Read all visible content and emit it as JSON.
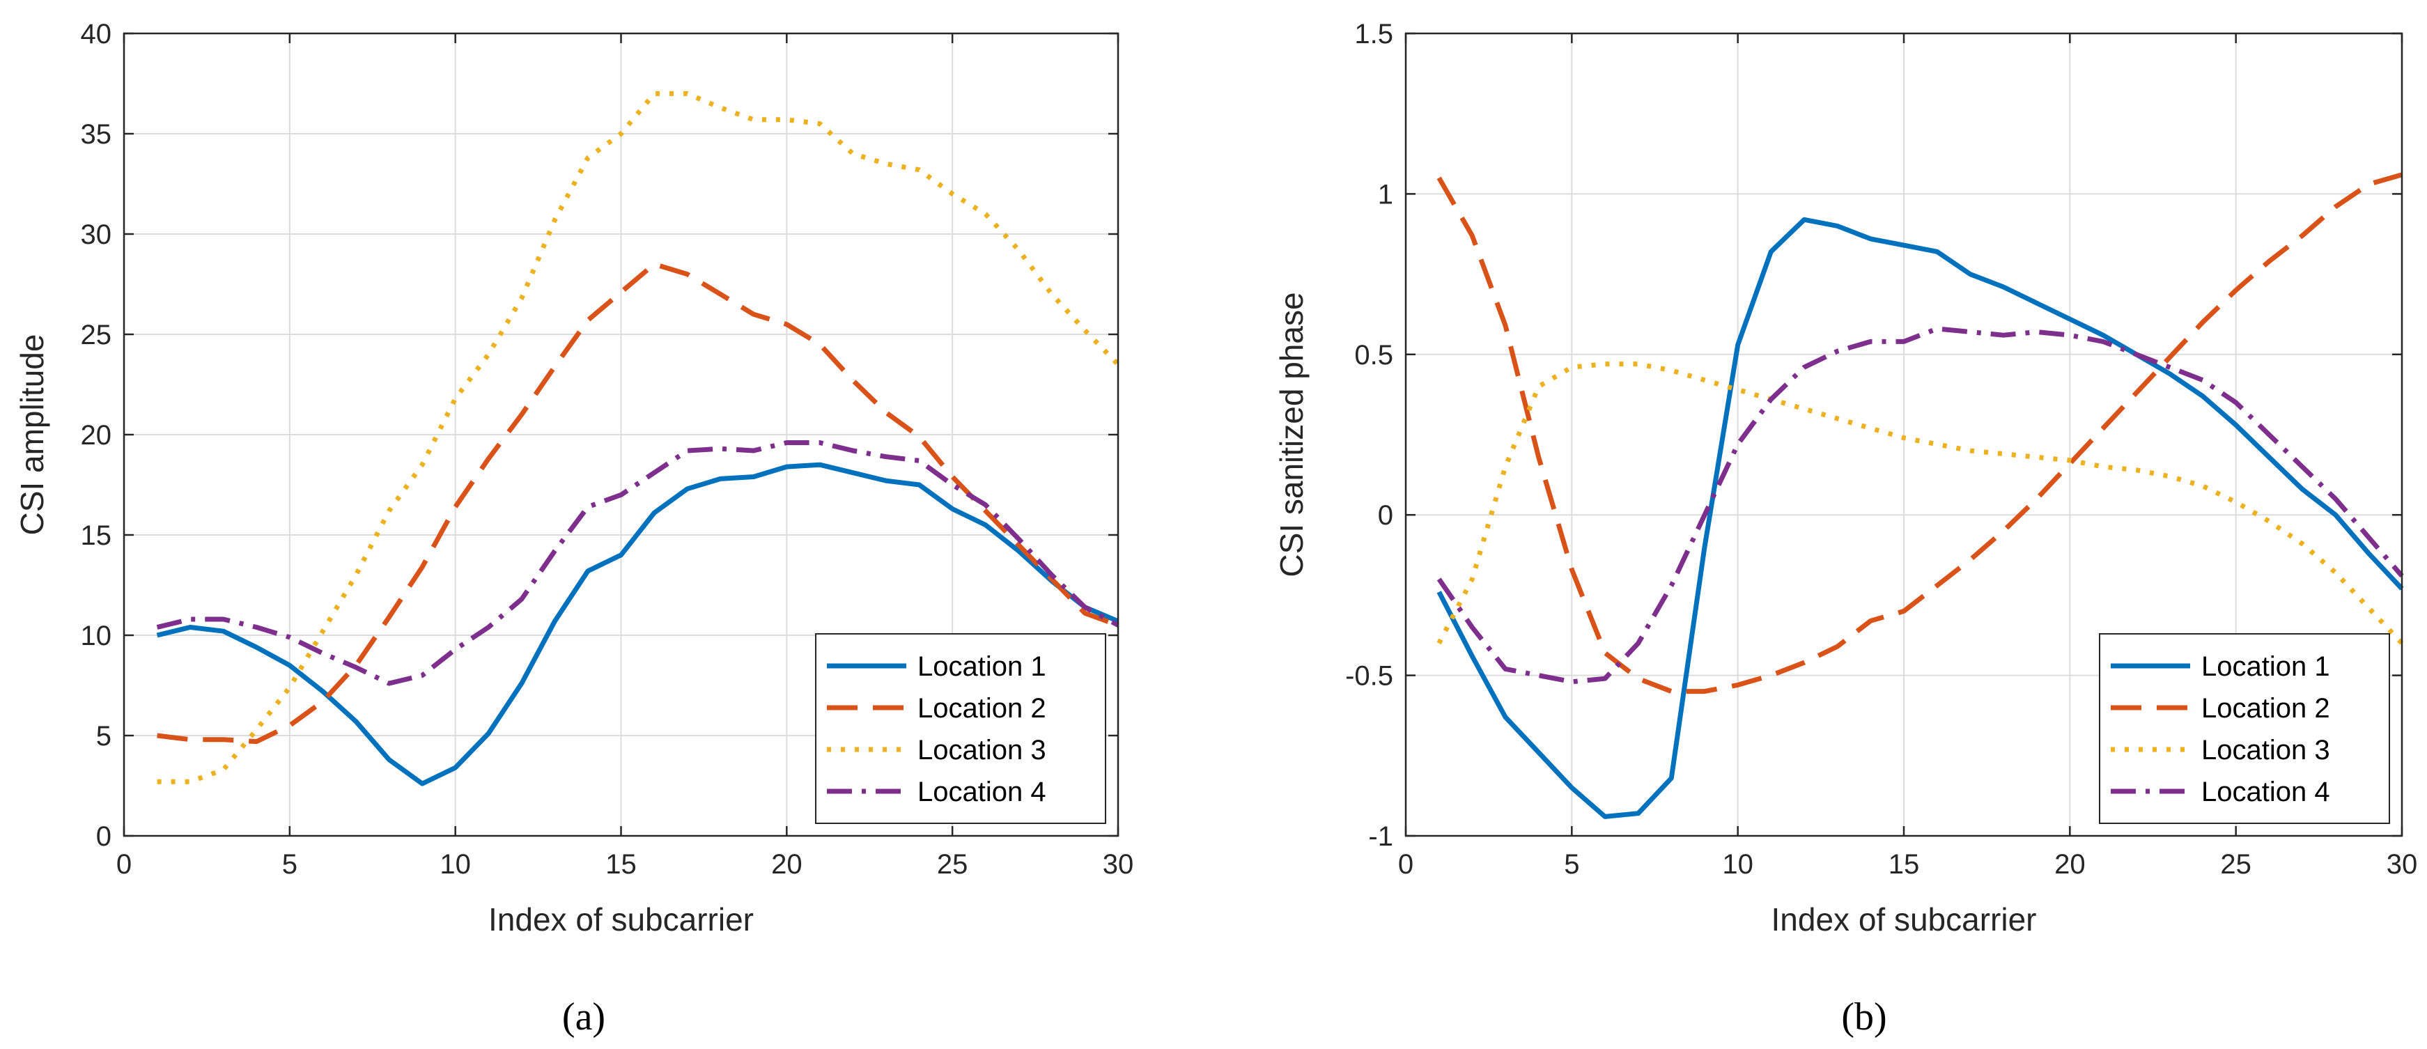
{
  "chart_data": [
    {
      "type": "line",
      "panel": "a",
      "caption": "(a)",
      "xlabel": "Index of subcarrier",
      "ylabel": "CSI amplitude",
      "xlim": [
        0,
        30
      ],
      "ylim": [
        0,
        40
      ],
      "xticks": [
        0,
        5,
        10,
        15,
        20,
        25,
        30
      ],
      "yticks": [
        0,
        5,
        10,
        15,
        20,
        25,
        30,
        35,
        40
      ],
      "grid": true,
      "legend_position": "bottom-right",
      "x": [
        1,
        2,
        3,
        4,
        5,
        6,
        7,
        8,
        9,
        10,
        11,
        12,
        13,
        14,
        15,
        16,
        17,
        18,
        19,
        20,
        21,
        22,
        23,
        24,
        25,
        26,
        27,
        28,
        29,
        30
      ],
      "series": [
        {
          "name": "Location 1",
          "style": "solid",
          "color": "#0072BD",
          "values": [
            10.0,
            10.4,
            10.2,
            9.4,
            8.5,
            7.2,
            5.7,
            3.8,
            2.6,
            3.4,
            5.1,
            7.6,
            10.7,
            13.2,
            14.0,
            16.1,
            17.3,
            17.8,
            17.9,
            18.4,
            18.5,
            18.1,
            17.7,
            17.5,
            16.3,
            15.5,
            14.2,
            12.7,
            11.4,
            10.7
          ]
        },
        {
          "name": "Location 2",
          "style": "dash",
          "color": "#D95319",
          "values": [
            5.0,
            4.8,
            4.8,
            4.7,
            5.5,
            6.7,
            8.5,
            10.9,
            13.4,
            16.4,
            18.8,
            21.0,
            23.4,
            25.7,
            27.1,
            28.5,
            28.0,
            27.0,
            26.0,
            25.5,
            24.5,
            22.7,
            21.1,
            19.9,
            17.9,
            16.2,
            14.5,
            12.8,
            11.1,
            10.5
          ]
        },
        {
          "name": "Location 3",
          "style": "dot",
          "color": "#EDB120",
          "values": [
            2.7,
            2.7,
            3.3,
            5.3,
            7.4,
            10.2,
            13.0,
            16.2,
            18.5,
            21.8,
            24.0,
            26.8,
            30.7,
            33.8,
            35.0,
            37.0,
            37.0,
            36.3,
            35.7,
            35.7,
            35.5,
            34.0,
            33.5,
            33.2,
            32.0,
            31.0,
            29.2,
            27.0,
            25.2,
            23.5
          ]
        },
        {
          "name": "Location 4",
          "style": "dashdot",
          "color": "#7E2F8E",
          "values": [
            10.4,
            10.8,
            10.8,
            10.4,
            9.9,
            9.1,
            8.4,
            7.6,
            8.0,
            9.3,
            10.4,
            11.8,
            14.2,
            16.4,
            17.0,
            18.1,
            19.2,
            19.3,
            19.2,
            19.6,
            19.6,
            19.2,
            18.9,
            18.7,
            17.5,
            16.5,
            14.8,
            13.0,
            11.4,
            10.5
          ]
        }
      ]
    },
    {
      "type": "line",
      "panel": "b",
      "caption": "(b)",
      "xlabel": "Index of subcarrier",
      "ylabel": "CSI sanitized phase",
      "xlim": [
        0,
        30
      ],
      "ylim": [
        -1,
        1.5
      ],
      "xticks": [
        0,
        5,
        10,
        15,
        20,
        25,
        30
      ],
      "yticks": [
        -1,
        -0.5,
        0,
        0.5,
        1,
        1.5
      ],
      "grid": true,
      "legend_position": "bottom-right",
      "x": [
        1,
        2,
        3,
        4,
        5,
        6,
        7,
        8,
        9,
        10,
        11,
        12,
        13,
        14,
        15,
        16,
        17,
        18,
        19,
        20,
        21,
        22,
        23,
        24,
        25,
        26,
        27,
        28,
        29,
        30
      ],
      "series": [
        {
          "name": "Location 1",
          "style": "solid",
          "color": "#0072BD",
          "values": [
            -0.24,
            -0.44,
            -0.63,
            -0.74,
            -0.85,
            -0.94,
            -0.93,
            -0.82,
            -0.1,
            0.53,
            0.82,
            0.92,
            0.9,
            0.86,
            0.84,
            0.82,
            0.75,
            0.71,
            0.66,
            0.61,
            0.56,
            0.5,
            0.44,
            0.37,
            0.28,
            0.18,
            0.08,
            0.0,
            -0.12,
            -0.23
          ]
        },
        {
          "name": "Location 2",
          "style": "dash",
          "color": "#D95319",
          "values": [
            1.05,
            0.87,
            0.59,
            0.18,
            -0.17,
            -0.43,
            -0.51,
            -0.55,
            -0.55,
            -0.53,
            -0.5,
            -0.46,
            -0.41,
            -0.33,
            -0.3,
            -0.22,
            -0.14,
            -0.05,
            0.05,
            0.16,
            0.27,
            0.38,
            0.49,
            0.6,
            0.7,
            0.79,
            0.87,
            0.96,
            1.03,
            1.06
          ]
        },
        {
          "name": "Location 3",
          "style": "dot",
          "color": "#EDB120",
          "values": [
            -0.4,
            -0.2,
            0.15,
            0.4,
            0.46,
            0.47,
            0.47,
            0.45,
            0.42,
            0.39,
            0.36,
            0.33,
            0.3,
            0.27,
            0.24,
            0.22,
            0.2,
            0.19,
            0.18,
            0.17,
            0.15,
            0.14,
            0.12,
            0.09,
            0.04,
            -0.02,
            -0.09,
            -0.18,
            -0.29,
            -0.4
          ]
        },
        {
          "name": "Location 4",
          "style": "dashdot",
          "color": "#7E2F8E",
          "values": [
            -0.2,
            -0.35,
            -0.48,
            -0.5,
            -0.52,
            -0.51,
            -0.4,
            -0.22,
            0.0,
            0.22,
            0.36,
            0.46,
            0.51,
            0.54,
            0.54,
            0.58,
            0.57,
            0.56,
            0.57,
            0.56,
            0.54,
            0.5,
            0.46,
            0.42,
            0.35,
            0.25,
            0.15,
            0.05,
            -0.07,
            -0.19
          ]
        }
      ]
    }
  ]
}
